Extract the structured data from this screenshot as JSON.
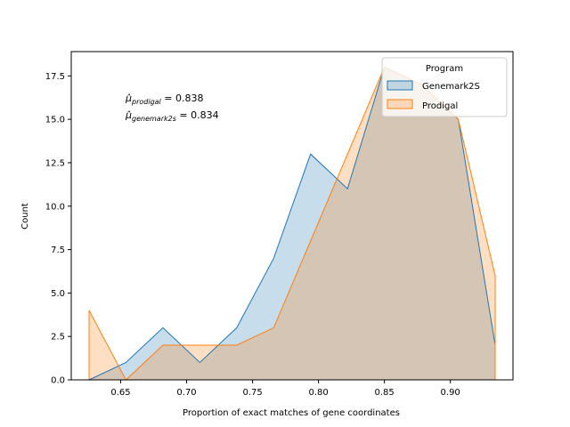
{
  "chart_data": {
    "type": "area",
    "title": "",
    "xlabel": "Proportion of exact matches of gene coordinates",
    "ylabel": "Count",
    "xlim": [
      0.6125,
      0.9475
    ],
    "ylim": [
      0,
      18.9
    ],
    "xticks": [
      0.65,
      0.7,
      0.75,
      0.8,
      0.85,
      0.9
    ],
    "xtick_labels": [
      "0.65",
      "0.70",
      "0.75",
      "0.80",
      "0.85",
      "0.90"
    ],
    "yticks": [
      0,
      2.5,
      5,
      7.5,
      10,
      12.5,
      15,
      17.5
    ],
    "ytick_labels": [
      "0.0",
      "2.5",
      "5.0",
      "7.5",
      "10.0",
      "12.5",
      "15.0",
      "17.5"
    ],
    "grid": false,
    "legend": {
      "title": "Program",
      "placement": "top-right",
      "entries": [
        "Genemark2S",
        "Prodigal"
      ]
    },
    "series": [
      {
        "name": "Genemark2S",
        "color": "#1f77b4",
        "x": [
          0.626,
          0.654,
          0.682,
          0.71,
          0.738,
          0.766,
          0.794,
          0.822,
          0.85,
          0.878,
          0.906,
          0.934
        ],
        "values": [
          0,
          1,
          3,
          1,
          3,
          7,
          13,
          11,
          18,
          17,
          15,
          2
        ]
      },
      {
        "name": "Prodigal",
        "color": "#ff7f0e",
        "x": [
          0.626,
          0.654,
          0.682,
          0.71,
          0.738,
          0.766,
          0.794,
          0.822,
          0.85,
          0.878,
          0.906,
          0.934
        ],
        "values": [
          4,
          0,
          2,
          2,
          2,
          3,
          8,
          13,
          18,
          17,
          15,
          6
        ]
      }
    ],
    "annotations": [
      {
        "symbol": "μ̂",
        "subscript": "prodigal",
        "text": " = 0.838"
      },
      {
        "symbol": "μ̂",
        "subscript": "genemark2s",
        "text": " = 0.834"
      }
    ]
  }
}
